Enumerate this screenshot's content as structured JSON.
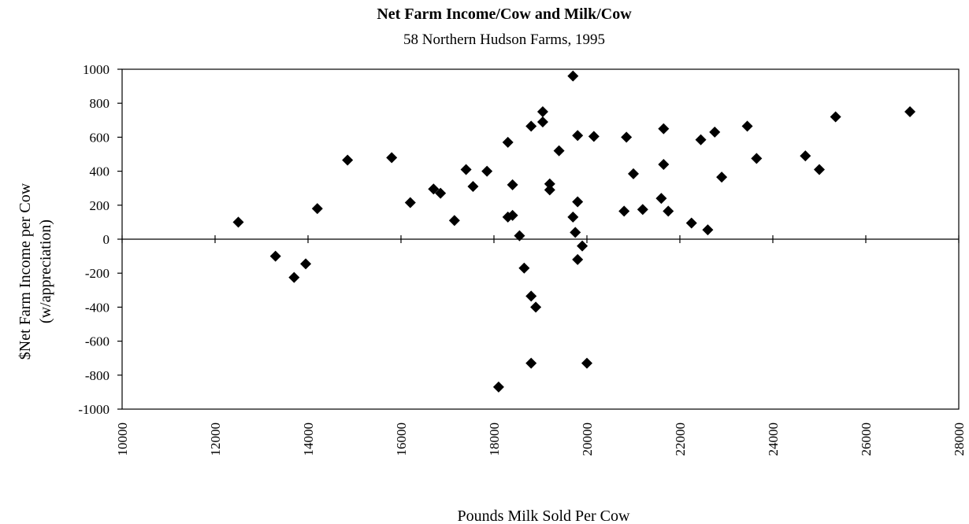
{
  "chart_data": {
    "type": "scatter",
    "title": "Net Farm Income/Cow and Milk/Cow",
    "subtitle": "58 Northern Hudson Farms, 1995",
    "xlabel": "Pounds Milk Sold Per Cow",
    "ylabel_line1": "$Net Farm Income per Cow",
    "ylabel_line2": "(w/appreciation)",
    "xlim": [
      10000,
      28000
    ],
    "ylim": [
      -1000,
      1000
    ],
    "x_ticks": [
      "10000",
      "12000",
      "14000",
      "16000",
      "18000",
      "20000",
      "22000",
      "24000",
      "26000",
      "28000"
    ],
    "y_ticks": [
      "1000",
      "800",
      "600",
      "400",
      "200",
      "0",
      "-200",
      "-400",
      "-600",
      "-800",
      "-1000"
    ],
    "grid": false,
    "marker_color": "#000000",
    "marker": "diamond",
    "points": [
      {
        "x": 12500,
        "y": 100
      },
      {
        "x": 13300,
        "y": -100
      },
      {
        "x": 13700,
        "y": -225
      },
      {
        "x": 13950,
        "y": -145
      },
      {
        "x": 14200,
        "y": 180
      },
      {
        "x": 14850,
        "y": 465
      },
      {
        "x": 15800,
        "y": 480
      },
      {
        "x": 16200,
        "y": 215
      },
      {
        "x": 16700,
        "y": 295
      },
      {
        "x": 16850,
        "y": 270
      },
      {
        "x": 17150,
        "y": 110
      },
      {
        "x": 17400,
        "y": 410
      },
      {
        "x": 17550,
        "y": 310
      },
      {
        "x": 17850,
        "y": 400
      },
      {
        "x": 18100,
        "y": -870
      },
      {
        "x": 18300,
        "y": 570
      },
      {
        "x": 18300,
        "y": 130
      },
      {
        "x": 18400,
        "y": 140
      },
      {
        "x": 18400,
        "y": 320
      },
      {
        "x": 18550,
        "y": 20
      },
      {
        "x": 18650,
        "y": -170
      },
      {
        "x": 18800,
        "y": 665
      },
      {
        "x": 18800,
        "y": -335
      },
      {
        "x": 18800,
        "y": -730
      },
      {
        "x": 18900,
        "y": -400
      },
      {
        "x": 19050,
        "y": 690
      },
      {
        "x": 19050,
        "y": 750
      },
      {
        "x": 19200,
        "y": 325
      },
      {
        "x": 19200,
        "y": 290
      },
      {
        "x": 19400,
        "y": 520
      },
      {
        "x": 19700,
        "y": 960
      },
      {
        "x": 19700,
        "y": 130
      },
      {
        "x": 19750,
        "y": 40
      },
      {
        "x": 19800,
        "y": 610
      },
      {
        "x": 19800,
        "y": 220
      },
      {
        "x": 19800,
        "y": -120
      },
      {
        "x": 19900,
        "y": -40
      },
      {
        "x": 20000,
        "y": -730
      },
      {
        "x": 20150,
        "y": 605
      },
      {
        "x": 20800,
        "y": 165
      },
      {
        "x": 20850,
        "y": 600
      },
      {
        "x": 21000,
        "y": 385
      },
      {
        "x": 21200,
        "y": 175
      },
      {
        "x": 21600,
        "y": 240
      },
      {
        "x": 21650,
        "y": 650
      },
      {
        "x": 21650,
        "y": 440
      },
      {
        "x": 21750,
        "y": 165
      },
      {
        "x": 22250,
        "y": 95
      },
      {
        "x": 22450,
        "y": 585
      },
      {
        "x": 22600,
        "y": 55
      },
      {
        "x": 22750,
        "y": 630
      },
      {
        "x": 22900,
        "y": 365
      },
      {
        "x": 23450,
        "y": 665
      },
      {
        "x": 23650,
        "y": 475
      },
      {
        "x": 24700,
        "y": 490
      },
      {
        "x": 25000,
        "y": 410
      },
      {
        "x": 25350,
        "y": 720
      },
      {
        "x": 26950,
        "y": 750
      }
    ]
  }
}
